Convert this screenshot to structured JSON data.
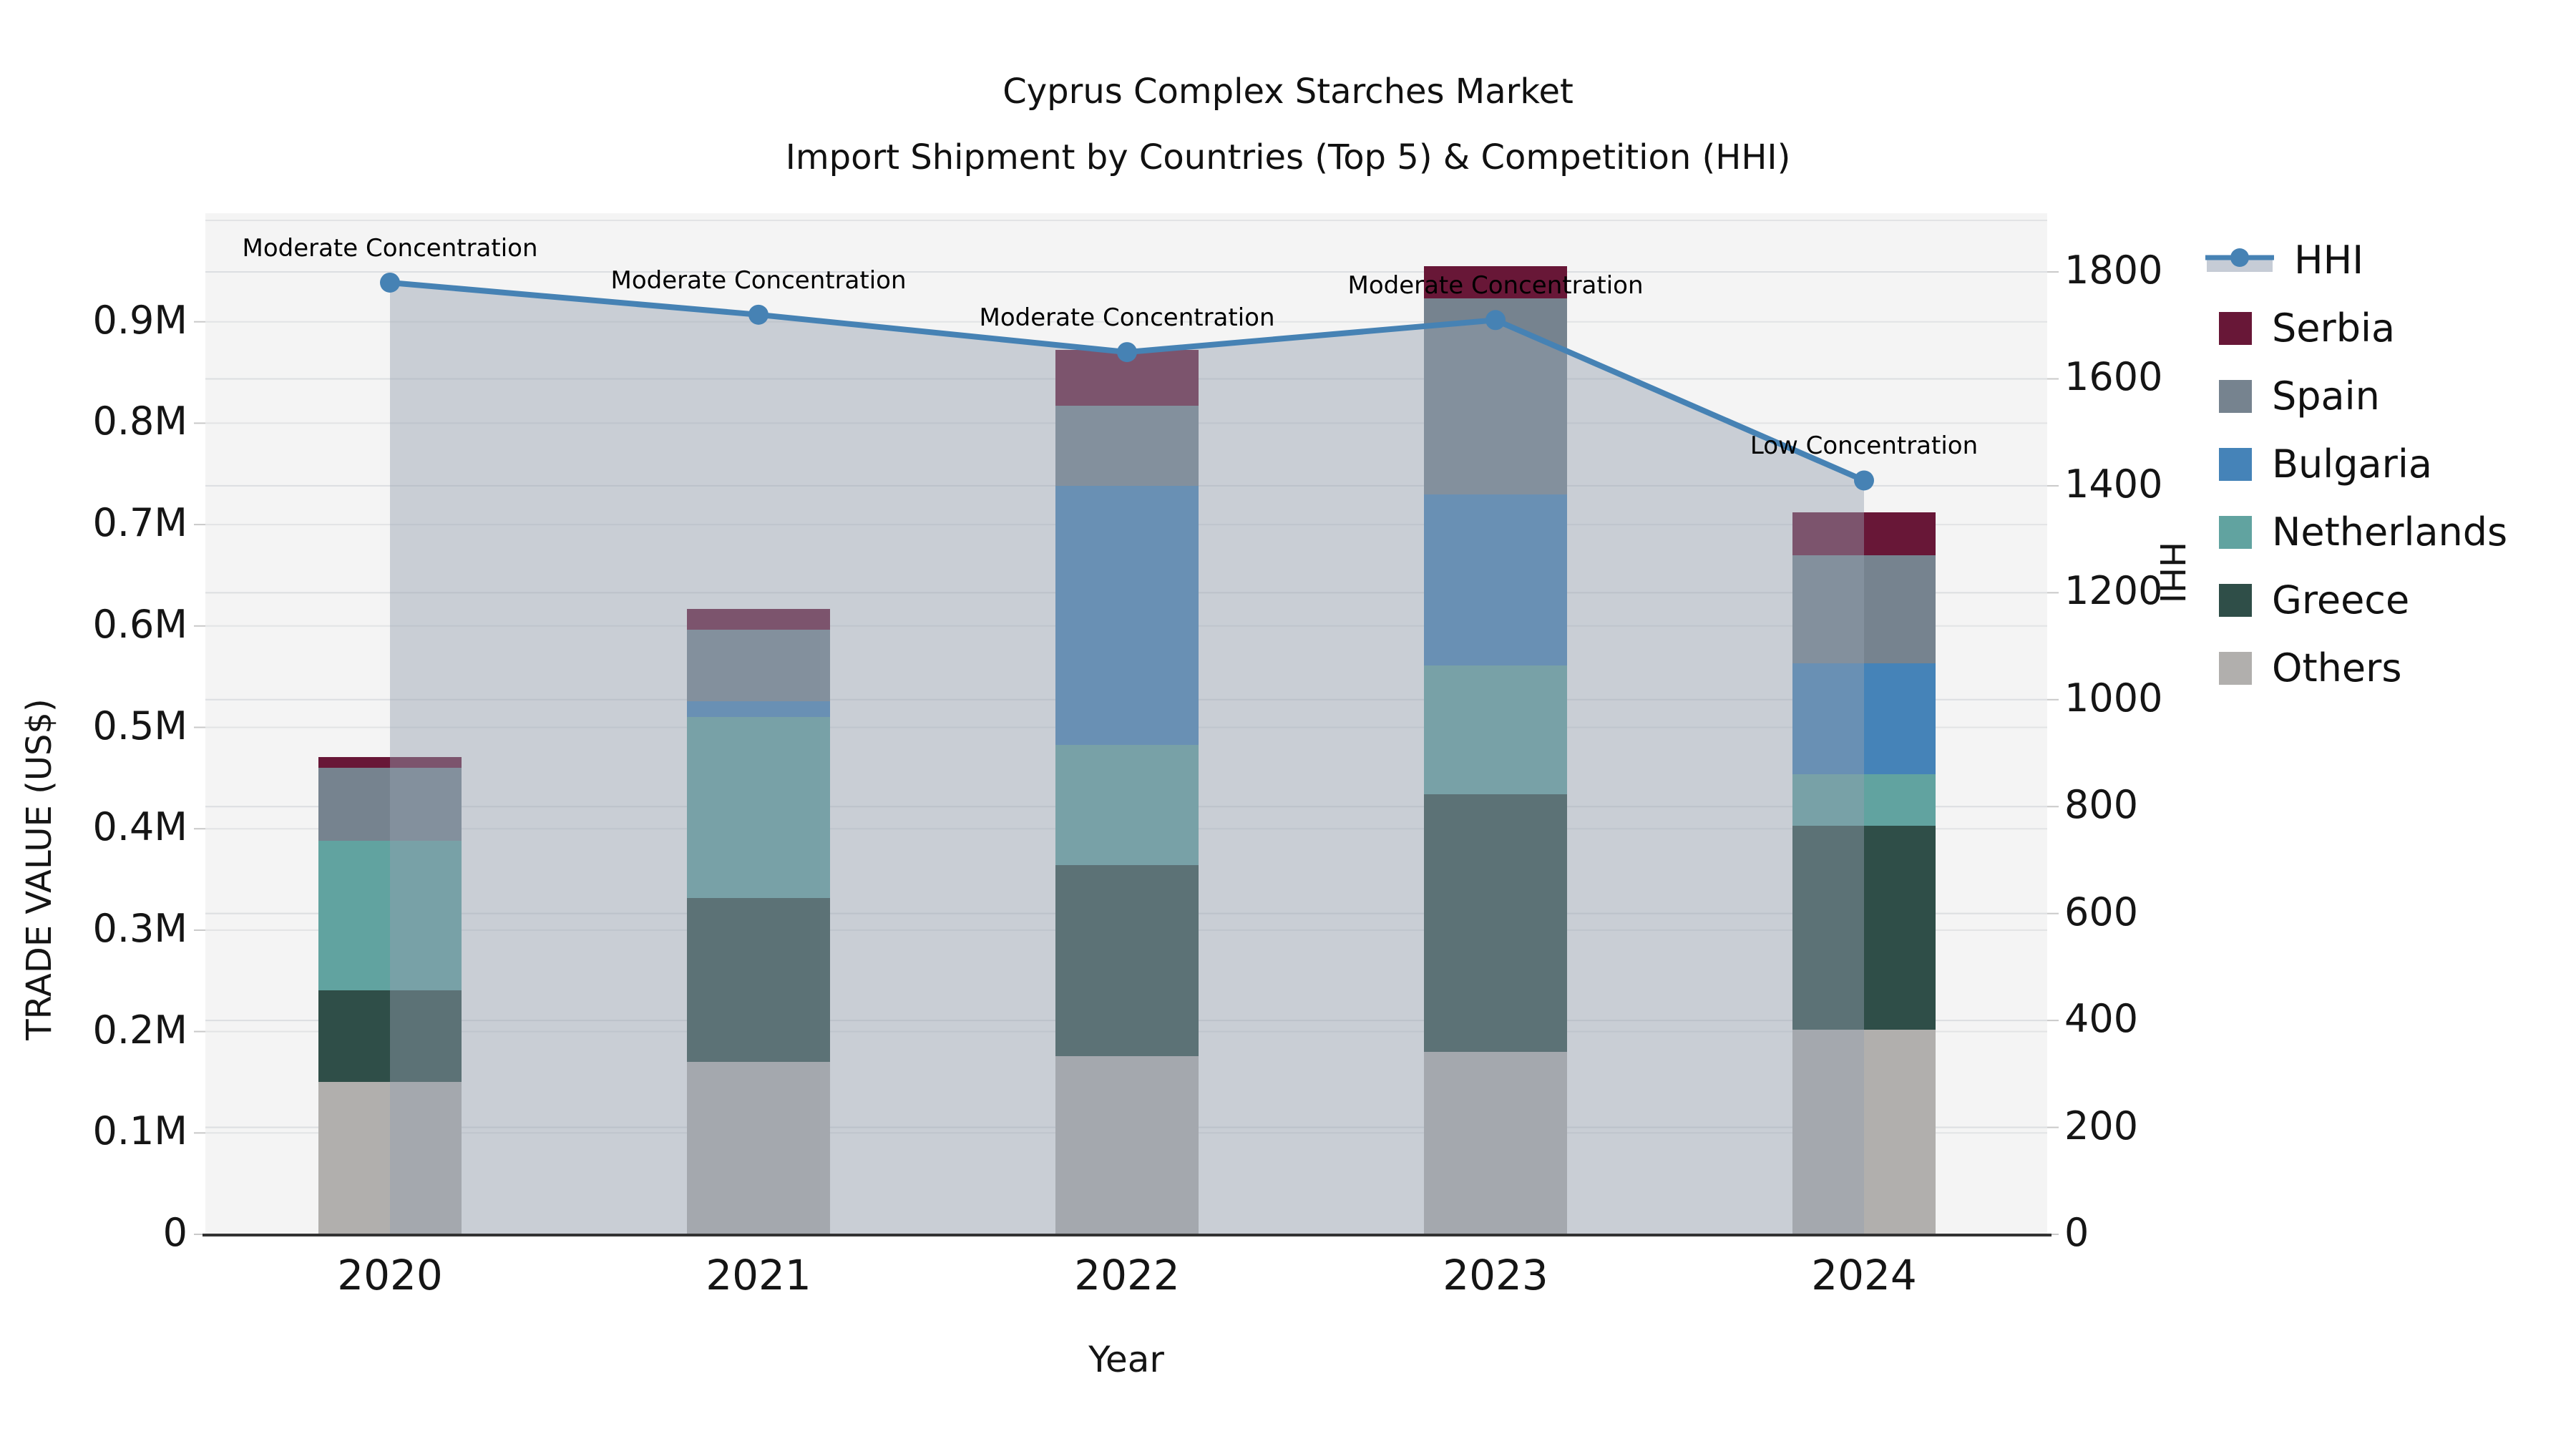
{
  "title": {
    "line1": "Cyprus Complex Starches Market",
    "line2": "Import Shipment by Countries (Top 5) & Competition (HHI)"
  },
  "axes": {
    "left": {
      "label": "TRADE VALUE (US$)",
      "ticks": [
        "0",
        "0.1M",
        "0.2M",
        "0.3M",
        "0.4M",
        "0.5M",
        "0.6M",
        "0.7M",
        "0.8M",
        "0.9M"
      ],
      "tick_values": [
        0,
        0.1,
        0.2,
        0.3,
        0.4,
        0.5,
        0.6,
        0.7,
        0.8,
        0.9
      ]
    },
    "right": {
      "label": "HHI",
      "ticks": [
        "0",
        "200",
        "400",
        "600",
        "800",
        "1000",
        "1200",
        "1400",
        "1600",
        "1800"
      ],
      "tick_values": [
        0,
        200,
        400,
        600,
        800,
        1000,
        1200,
        1400,
        1600,
        1800
      ]
    },
    "x": {
      "label": "Year",
      "categories": [
        "2020",
        "2021",
        "2022",
        "2023",
        "2024"
      ]
    }
  },
  "legend": {
    "items": [
      {
        "label": "HHI",
        "type": "line",
        "color": "#4682B4"
      },
      {
        "label": "Serbia",
        "type": "square",
        "color": "#681737"
      },
      {
        "label": "Spain",
        "type": "square",
        "color": "#76838F"
      },
      {
        "label": "Bulgaria",
        "type": "square",
        "color": "#4583B8"
      },
      {
        "label": "Netherlands",
        "type": "square",
        "color": "#61A3A0"
      },
      {
        "label": "Greece",
        "type": "square",
        "color": "#2F4E48"
      },
      {
        "label": "Others",
        "type": "square",
        "color": "#B1AFAD"
      }
    ]
  },
  "chart_data": {
    "type": "bar",
    "subtype": "stacked-bars-with-line-overlay",
    "title": "Cyprus Complex Starches Market — Import Shipment by Countries (Top 5) & Competition (HHI)",
    "xlabel": "Year",
    "ylabel_left": "TRADE VALUE (US$)",
    "ylabel_right": "HHI",
    "ylim_left_M": [
      0,
      1.007
    ],
    "ylim_right": [
      0,
      1910
    ],
    "grid": true,
    "legend_position": "right",
    "categories": [
      "2020",
      "2021",
      "2022",
      "2023",
      "2024"
    ],
    "series": [
      {
        "name": "Others",
        "color": "#B1AFAD",
        "values_M": [
          0.15,
          0.17,
          0.176,
          0.18,
          0.202
        ]
      },
      {
        "name": "Greece",
        "color": "#2F4E48",
        "values_M": [
          0.091,
          0.162,
          0.188,
          0.254,
          0.201
        ]
      },
      {
        "name": "Netherlands",
        "color": "#61A3A0",
        "values_M": [
          0.147,
          0.178,
          0.119,
          0.127,
          0.051
        ]
      },
      {
        "name": "Bulgaria",
        "color": "#4583B8",
        "values_M": [
          0.0,
          0.016,
          0.255,
          0.169,
          0.109
        ]
      },
      {
        "name": "Spain",
        "color": "#76838F",
        "values_M": [
          0.072,
          0.07,
          0.079,
          0.193,
          0.107
        ]
      },
      {
        "name": "Serbia",
        "color": "#681737",
        "values_M": [
          0.011,
          0.021,
          0.055,
          0.032,
          0.042
        ]
      }
    ],
    "totals_M": [
      0.471,
      0.617,
      0.872,
      0.955,
      0.712
    ],
    "line_series": {
      "name": "HHI",
      "color": "#4682B4",
      "values": [
        1780,
        1720,
        1650,
        1710,
        1410
      ]
    },
    "area_under_line": true,
    "annotations": [
      {
        "category": "2020",
        "text": "Moderate Concentration"
      },
      {
        "category": "2021",
        "text": "Moderate Concentration"
      },
      {
        "category": "2022",
        "text": "Moderate Concentration"
      },
      {
        "category": "2023",
        "text": "Moderate Concentration"
      },
      {
        "category": "2024",
        "text": "Low Concentration"
      }
    ]
  },
  "colors": {
    "plot_background": "#f4f4f4",
    "figure_background": "#ffffff",
    "grid_left": "#e2e3e5",
    "grid_right": "#dcdee1",
    "axis_line": "#333333",
    "hhi_line": "#4682B4",
    "area_fill": "rgba(148,160,176,0.45)",
    "text": "#151515"
  }
}
